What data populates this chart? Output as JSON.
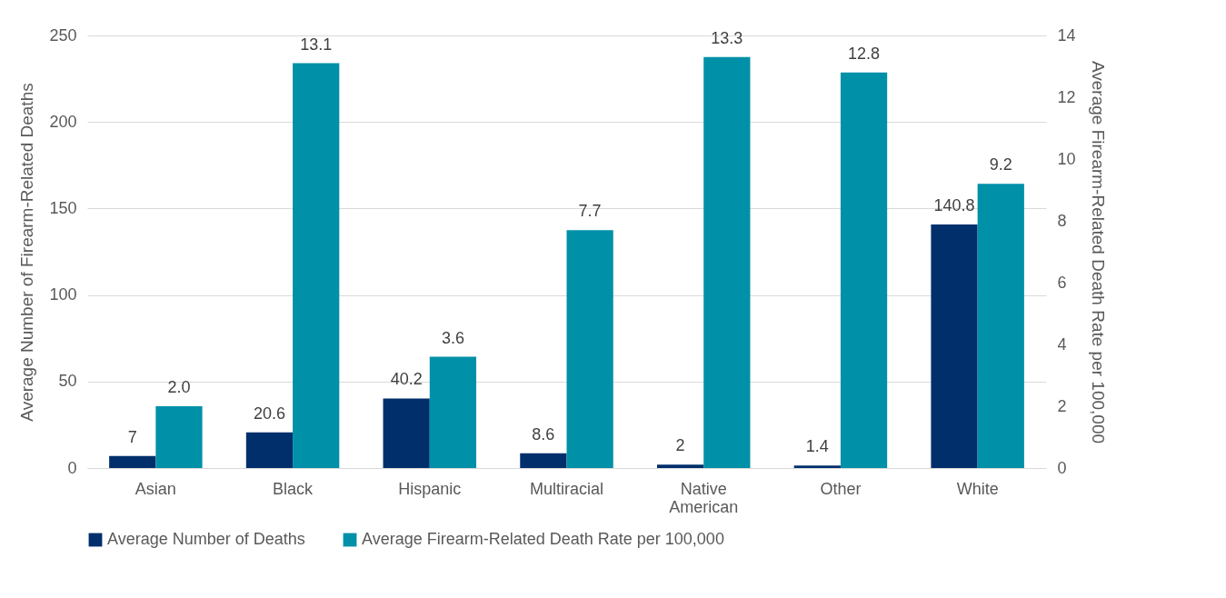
{
  "chart_data": {
    "type": "bar",
    "categories": [
      "Asian",
      "Black",
      "Hispanic",
      "Multiracial",
      "Native American",
      "Other",
      "White"
    ],
    "ylabel": "Average Number of Firearm-Related Deaths",
    "y2label": "Average Firearm-Related Death Rate per 100,000",
    "ylim": [
      0,
      250
    ],
    "yticks": [
      0,
      50,
      100,
      150,
      200,
      250
    ],
    "y2lim": [
      0,
      14
    ],
    "y2ticks": [
      0,
      2,
      4,
      6,
      8,
      10,
      12,
      14
    ],
    "grid": "y",
    "legend": "bottom",
    "series": [
      {
        "name": "Average Number of Deaths",
        "color": "#002f6c",
        "values": [
          7,
          20.6,
          40.2,
          8.6,
          2,
          1.4,
          140.8
        ],
        "value_labels": [
          "7",
          "20.6",
          "40.2",
          "8.6",
          "2",
          "1.4",
          "140.8"
        ]
      },
      {
        "name": "Average Firearm-Related Death Rate per 100,000",
        "color": "#0090a8",
        "axis": "y2",
        "values": [
          2.0,
          13.1,
          3.6,
          7.7,
          13.3,
          12.8,
          9.2
        ],
        "value_labels": [
          "2.0",
          "13.1",
          "3.6",
          "7.7",
          "13.3",
          "12.8",
          "9.2"
        ]
      }
    ]
  }
}
